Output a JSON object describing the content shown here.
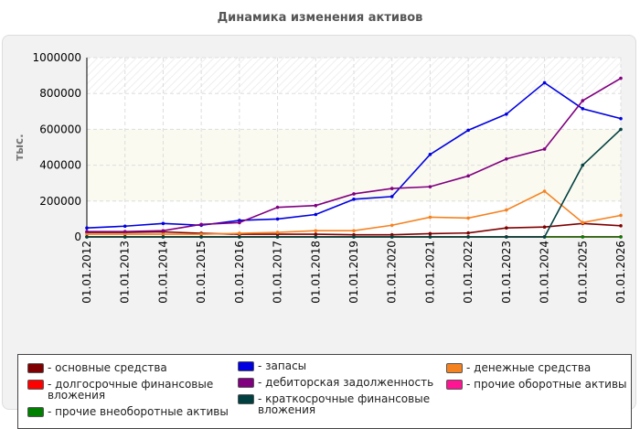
{
  "chart_data": {
    "type": "line",
    "title": "Динамика изменения активов",
    "ylabel": "тыс.",
    "xlabel": "",
    "ylim": [
      0,
      1000000
    ],
    "yticks": [
      0,
      200000,
      400000,
      600000,
      800000,
      1000000
    ],
    "grid": true,
    "legend_position": "bottom",
    "categories": [
      "01.01.2012",
      "01.01.2013",
      "01.01.2014",
      "01.01.2015",
      "01.01.2016",
      "01.01.2017",
      "01.01.2018",
      "01.01.2019",
      "01.01.2020",
      "01.01.2021",
      "01.01.2022",
      "01.01.2023",
      "01.01.2024",
      "01.01.2025",
      "01.01.2026"
    ],
    "series": [
      {
        "name": "основные средства",
        "color": "#7f0000",
        "values": [
          25000,
          25000,
          28000,
          20000,
          15000,
          15000,
          15000,
          12000,
          12000,
          18000,
          22000,
          50000,
          55000,
          75000,
          62000
        ]
      },
      {
        "name": "запасы",
        "color": "#0000e0",
        "values": [
          50000,
          60000,
          75000,
          65000,
          92000,
          100000,
          125000,
          210000,
          225000,
          460000,
          595000,
          685000,
          860000,
          715000,
          660000
        ]
      },
      {
        "name": "денежные средства",
        "color": "#f58220",
        "values": [
          15000,
          15000,
          15000,
          15000,
          20000,
          25000,
          35000,
          35000,
          65000,
          110000,
          105000,
          150000,
          255000,
          80000,
          120000
        ]
      },
      {
        "name": "долгосрочные финансовые вложения",
        "color": "#ff0000",
        "values": [
          1000,
          1000,
          1000,
          1000,
          1000,
          1000,
          1000,
          1000,
          1000,
          1000,
          1000,
          1000,
          1000,
          1000,
          1000
        ]
      },
      {
        "name": "дебиторская задолженность",
        "color": "#800080",
        "values": [
          30000,
          30000,
          35000,
          70000,
          80000,
          165000,
          175000,
          240000,
          270000,
          280000,
          340000,
          435000,
          490000,
          760000,
          885000
        ]
      },
      {
        "name": "прочие оборотные активы",
        "color": "#ff1493",
        "values": [
          0,
          0,
          0,
          0,
          0,
          0,
          0,
          0,
          0,
          0,
          0,
          0,
          0,
          0,
          0
        ]
      },
      {
        "name": "прочие внеоборотные активы",
        "color": "#008000",
        "values": [
          0,
          0,
          0,
          0,
          0,
          0,
          0,
          0,
          0,
          0,
          0,
          0,
          0,
          0,
          0
        ]
      },
      {
        "name": "краткосрочные финансовые вложения",
        "color": "#004040",
        "values": [
          0,
          0,
          0,
          0,
          0,
          0,
          0,
          0,
          0,
          0,
          0,
          0,
          0,
          400000,
          600000
        ]
      }
    ]
  },
  "legend": {
    "items": [
      {
        "label": "- основные средства",
        "color": "#7f0000"
      },
      {
        "label": "- запасы",
        "color": "#0000e0"
      },
      {
        "label": "- денежные средства",
        "color": "#f58220"
      },
      {
        "label": "- долгосрочные финансовые вложения",
        "color": "#ff0000"
      },
      {
        "label": "- дебиторская задолженность",
        "color": "#800080"
      },
      {
        "label": "- прочие оборотные активы",
        "color": "#ff1493"
      },
      {
        "label": "- прочие внеоборотные активы",
        "color": "#008000"
      },
      {
        "label": "- краткосрочные финансовые вложения",
        "color": "#004040"
      }
    ]
  }
}
